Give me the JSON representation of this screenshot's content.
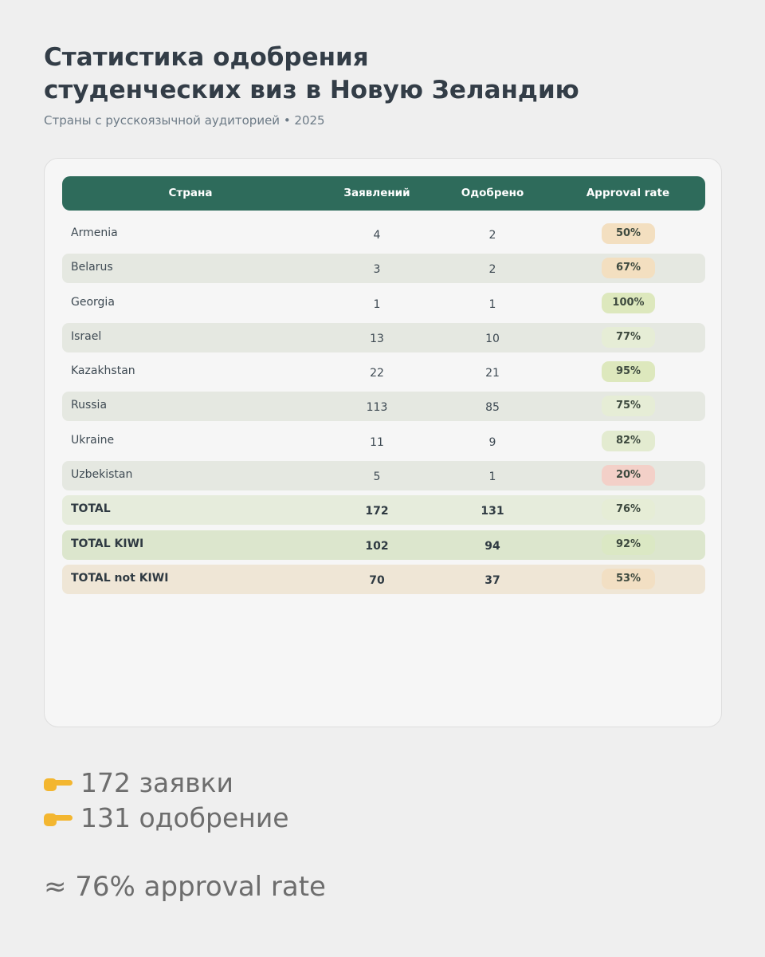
{
  "header": {
    "title_line1": "Статистика одобрения",
    "title_line2": "студенческих виз в Новую Зеландию",
    "subtitle": "Страны с русскоязычной аудиторией • 2025"
  },
  "chart_data": {
    "type": "table",
    "columns": [
      "Страна",
      "Заявлений",
      "Одобрено",
      "Approval rate"
    ],
    "rows": [
      {
        "country": "Armenia",
        "applications": "4",
        "approved": "2",
        "rate": "50%",
        "badge": "#f3dfc0"
      },
      {
        "country": "Belarus",
        "applications": "3",
        "approved": "2",
        "rate": "67%",
        "badge": "#f3dfc0"
      },
      {
        "country": "Georgia",
        "applications": "1",
        "approved": "1",
        "rate": "100%",
        "badge": "#dde8bd"
      },
      {
        "country": "Israel",
        "applications": "13",
        "approved": "10",
        "rate": "77%",
        "badge": "#e6edd6"
      },
      {
        "country": "Kazakhstan",
        "applications": "22",
        "approved": "21",
        "rate": "95%",
        "badge": "#dde8bd"
      },
      {
        "country": "Russia",
        "applications": "113",
        "approved": "85",
        "rate": "75%",
        "badge": "#e6edd6"
      },
      {
        "country": "Ukraine",
        "applications": "11",
        "approved": "9",
        "rate": "82%",
        "badge": "#e3ebd0"
      },
      {
        "country": "Uzbekistan",
        "applications": "5",
        "approved": "1",
        "rate": "20%",
        "badge": "#f3d0c8"
      }
    ],
    "totals": [
      {
        "country": "TOTAL",
        "applications": "172",
        "approved": "131",
        "rate": "76%",
        "badge": "#e6edd6"
      },
      {
        "country": "TOTAL KIWI",
        "applications": "102",
        "approved": "94",
        "rate": "92%",
        "badge": "#dbe8c4"
      },
      {
        "country": "TOTAL not KIWI",
        "applications": "70",
        "approved": "37",
        "rate": "53%",
        "badge": "#f2dfc3"
      }
    ]
  },
  "summary": {
    "line1": "172 заявки",
    "line2": "131 одобрение",
    "rate": "≈ 76% approval rate",
    "icon": "pointing-hand-icon"
  }
}
